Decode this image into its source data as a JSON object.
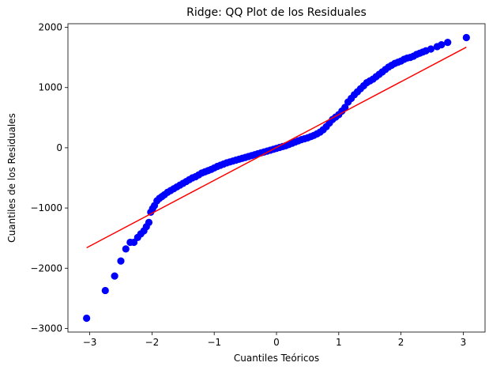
{
  "chart_data": {
    "type": "scatter",
    "title": "Ridge: QQ Plot de los Residuales",
    "xlabel": "Cuantiles Teóricos",
    "ylabel": "Cuantiles de los Residuales",
    "xlim": [
      -3.35,
      3.35
    ],
    "ylim": [
      -3060,
      2060
    ],
    "x_ticks": [
      -3,
      -2,
      -1,
      0,
      1,
      2,
      3
    ],
    "y_ticks": [
      -3000,
      -2000,
      -1000,
      0,
      1000,
      2000
    ],
    "x_tick_labels": [
      "−3",
      "−2",
      "−1",
      "0",
      "1",
      "2",
      "3"
    ],
    "y_tick_labels": [
      "−3000",
      "−2000",
      "−1000",
      "0",
      "1000",
      "2000"
    ],
    "grid": false,
    "legend": "none",
    "series": [
      {
        "kind": "points",
        "color": "#0000ff",
        "x": [
          -3.05,
          -2.75,
          -2.6,
          -2.5,
          -2.42,
          -2.35,
          -2.29,
          -2.23,
          -2.18,
          -2.13,
          -2.09,
          -2.05,
          -2.02,
          -1.99,
          -1.96,
          -1.92,
          -1.88,
          -1.84,
          -1.8,
          -1.75,
          -1.7,
          -1.65,
          -1.6,
          -1.55,
          -1.5,
          -1.45,
          -1.4,
          -1.35,
          -1.3,
          -1.25,
          -1.2,
          -1.15,
          -1.1,
          -1.05,
          -1.0,
          -0.95,
          -0.9,
          -0.85,
          -0.8,
          -0.75,
          -0.7,
          -0.65,
          -0.6,
          -0.55,
          -0.5,
          -0.45,
          -0.4,
          -0.35,
          -0.3,
          -0.25,
          -0.2,
          -0.15,
          -0.1,
          -0.05,
          0.0,
          0.05,
          0.1,
          0.15,
          0.2,
          0.25,
          0.3,
          0.35,
          0.4,
          0.45,
          0.5,
          0.55,
          0.6,
          0.65,
          0.7,
          0.75,
          0.8,
          0.85,
          0.9,
          0.95,
          1.0,
          1.05,
          1.1,
          1.15,
          1.2,
          1.25,
          1.3,
          1.35,
          1.4,
          1.45,
          1.5,
          1.55,
          1.6,
          1.65,
          1.7,
          1.75,
          1.8,
          1.85,
          1.9,
          1.95,
          2.0,
          2.05,
          2.1,
          2.15,
          2.2,
          2.25,
          2.3,
          2.35,
          2.4,
          2.48,
          2.58,
          2.65,
          2.75,
          3.05
        ],
        "y": [
          -2830,
          -2370,
          -2130,
          -1880,
          -1680,
          -1570,
          -1570,
          -1490,
          -1430,
          -1380,
          -1310,
          -1240,
          -1070,
          -1010,
          -960,
          -880,
          -840,
          -810,
          -780,
          -740,
          -710,
          -680,
          -650,
          -620,
          -590,
          -560,
          -530,
          -500,
          -480,
          -450,
          -420,
          -400,
          -380,
          -360,
          -335,
          -310,
          -290,
          -270,
          -250,
          -235,
          -220,
          -205,
          -190,
          -175,
          -160,
          -145,
          -130,
          -115,
          -100,
          -85,
          -70,
          -55,
          -40,
          -25,
          -10,
          5,
          20,
          35,
          55,
          75,
          95,
          115,
          135,
          150,
          165,
          185,
          205,
          230,
          260,
          300,
          350,
          410,
          470,
          510,
          550,
          610,
          670,
          760,
          820,
          880,
          930,
          980,
          1030,
          1080,
          1110,
          1140,
          1180,
          1220,
          1260,
          1300,
          1340,
          1370,
          1400,
          1420,
          1440,
          1470,
          1490,
          1500,
          1520,
          1550,
          1570,
          1590,
          1610,
          1640,
          1680,
          1710,
          1750,
          1830
        ]
      },
      {
        "kind": "line",
        "color": "#ff0000",
        "x": [
          -3.05,
          3.05
        ],
        "y": [
          -1660,
          1670
        ]
      }
    ]
  }
}
